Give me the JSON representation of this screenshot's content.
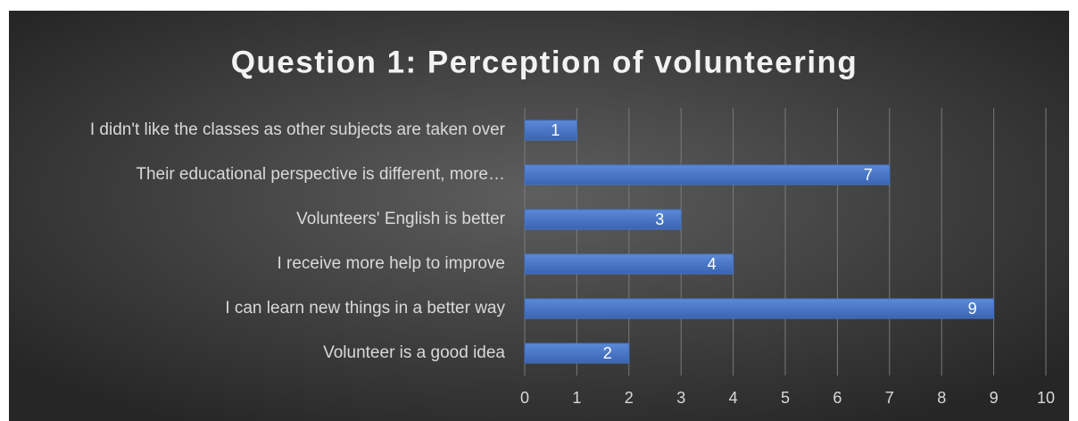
{
  "chart_data": {
    "type": "hbar",
    "title": "Question 1: Perception of volunteering",
    "categories": [
      "I didn't like the classes as other subjects are taken over",
      "Their educational perspective is different, more…",
      "Volunteers' English is better",
      "I receive more help to improve",
      "I can learn new things in a better way",
      "Volunteer is a good idea"
    ],
    "values": [
      1,
      7,
      3,
      4,
      9,
      2
    ],
    "color": "#4472c4",
    "xlim": [
      0,
      10
    ],
    "xticks": [
      0,
      1,
      2,
      3,
      4,
      5,
      6,
      7,
      8,
      9,
      10
    ],
    "grid": true
  }
}
